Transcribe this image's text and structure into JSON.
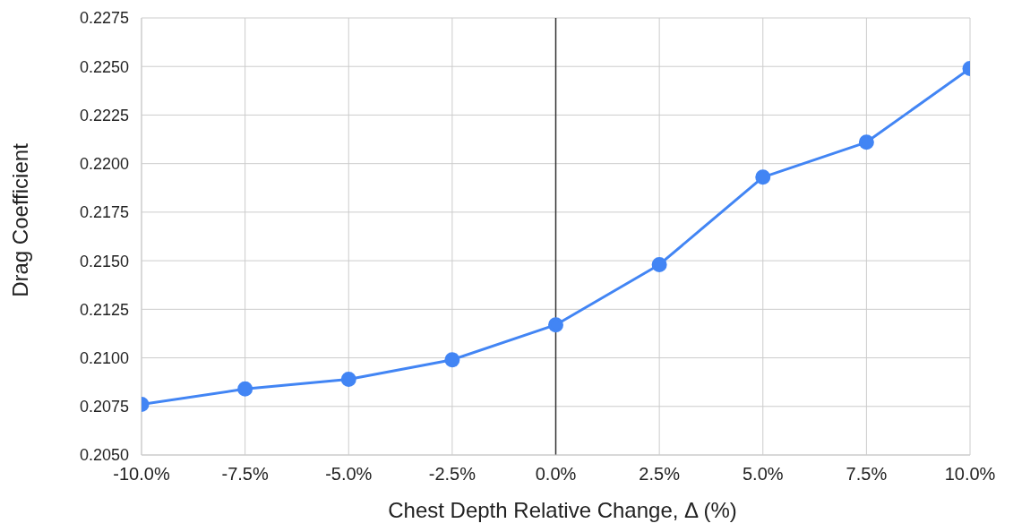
{
  "chart_data": {
    "type": "line",
    "xlabel": "Chest Depth Relative Change, Δ (%)",
    "ylabel": "Drag Coefficient",
    "x": [
      -10,
      -7.5,
      -5,
      -2.5,
      0,
      2.5,
      5,
      7.5,
      10
    ],
    "series": [
      {
        "color": "#4285f4",
        "values": [
          0.2076,
          0.2084,
          0.2089,
          0.2099,
          0.2117,
          0.2148,
          0.2193,
          0.2211,
          0.2249
        ]
      }
    ],
    "xlim": [
      -10,
      10
    ],
    "xticks": [
      {
        "value": -10,
        "label": "-10.0%"
      },
      {
        "value": -7.5,
        "label": "-7.5%"
      },
      {
        "value": -5,
        "label": "-5.0%"
      },
      {
        "value": -2.5,
        "label": "-2.5%"
      },
      {
        "value": 0,
        "label": "0.0%"
      },
      {
        "value": 2.5,
        "label": "2.5%"
      },
      {
        "value": 5,
        "label": "5.0%"
      },
      {
        "value": 7.5,
        "label": "7.5%"
      },
      {
        "value": 10,
        "label": "10.0%"
      }
    ],
    "ylim": [
      0.205,
      0.2275
    ],
    "yticks": [
      {
        "value": 0.205,
        "label": "0.2050"
      },
      {
        "value": 0.2075,
        "label": "0.2075"
      },
      {
        "value": 0.21,
        "label": "0.2100"
      },
      {
        "value": 0.2125,
        "label": "0.2125"
      },
      {
        "value": 0.215,
        "label": "0.2150"
      },
      {
        "value": 0.2175,
        "label": "0.2175"
      },
      {
        "value": 0.22,
        "label": "0.2200"
      },
      {
        "value": 0.2225,
        "label": "0.2225"
      },
      {
        "value": 0.225,
        "label": "0.2250"
      },
      {
        "value": 0.2275,
        "label": "0.2275"
      }
    ],
    "ref_lines": [
      {
        "axis": "x",
        "value": 0,
        "color": "#333333"
      }
    ],
    "grid": true,
    "marker": "circle",
    "line_style": "solid"
  }
}
